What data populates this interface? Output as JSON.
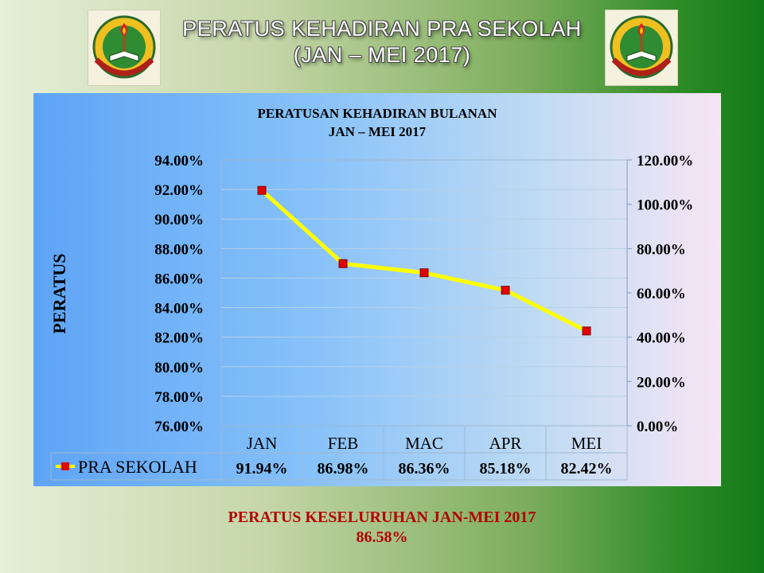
{
  "slide": {
    "title_line1": "PERATUS KEHADIRAN PRA SEKOLAH",
    "title_line2": "(JAN – MEI 2017)",
    "logo": {
      "top_text": "SK SERI CHEDING",
      "bottom_text": "CITA • USAHA • JAYA",
      "icon": "school-crest-torch-book"
    }
  },
  "summary": {
    "label": "PERATUS KESELURUHAN JAN-MEI 2017",
    "value": "86.58%"
  },
  "colors": {
    "line": "#ffff00",
    "marker": "#e00000",
    "summary_text": "#b40000"
  },
  "chart_data": {
    "type": "line",
    "title": "PERATUSAN KEHADIRAN BULANAN",
    "subtitle": "JAN – MEI 2017",
    "ylabel": "PERATUS",
    "xlabel": "",
    "categories": [
      "JAN",
      "FEB",
      "MAC",
      "APR",
      "MEI"
    ],
    "series": [
      {
        "name": "PRA SEKOLAH",
        "values": [
          91.94,
          86.98,
          86.36,
          85.18,
          82.42
        ],
        "labels": [
          "91.94%",
          "86.98%",
          "86.36%",
          "85.18%",
          "82.42%"
        ]
      }
    ],
    "ylim": [
      76,
      94
    ],
    "y_ticks": [
      "94.00%",
      "92.00%",
      "90.00%",
      "88.00%",
      "86.00%",
      "84.00%",
      "82.00%",
      "80.00%",
      "78.00%",
      "76.00%"
    ],
    "y2_ticks": [
      "120.00%",
      "100.00%",
      "80.00%",
      "60.00%",
      "40.00%",
      "20.00%",
      "0.00%"
    ],
    "grid": true,
    "legend": "data-table",
    "data_table": true
  }
}
